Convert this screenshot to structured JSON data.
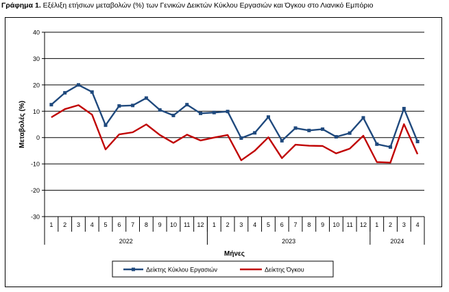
{
  "figure_title": {
    "label": "Γράφημα 1.",
    "text": " Εξέλιξη ετήσιων μεταβολών (%) των Γενικών Δεικτών Κύκλου Εργασιών και Όγκου στο Λιανικό Εμπόριο"
  },
  "colors": {
    "turnover": "#1f497d",
    "volume": "#c00000",
    "grid": "#000000"
  },
  "chart_data": {
    "type": "line",
    "title": "",
    "xlabel": "Μήνες",
    "ylabel": "Μεταβολές  (%)",
    "ylim": [
      -30,
      40
    ],
    "yticks": [
      -30,
      -20,
      -10,
      0,
      10,
      20,
      30,
      40
    ],
    "grid": true,
    "legend_position": "bottom",
    "x": [
      "1",
      "2",
      "3",
      "4",
      "5",
      "6",
      "7",
      "8",
      "9",
      "10",
      "11",
      "12",
      "1",
      "2",
      "3",
      "4",
      "5",
      "6",
      "7",
      "8",
      "9",
      "10",
      "11",
      "12",
      "1",
      "2",
      "3",
      "4"
    ],
    "year_groups": [
      {
        "label": "2022",
        "count": 12
      },
      {
        "label": "2023",
        "count": 12
      },
      {
        "label": "2024",
        "count": 4
      }
    ],
    "series": [
      {
        "name": "Δείκτης Κύκλου Εργασιών",
        "marker": "square",
        "values": [
          12.5,
          17.0,
          20.0,
          17.3,
          4.7,
          12.0,
          12.2,
          15.0,
          10.5,
          8.4,
          12.5,
          9.2,
          9.5,
          9.9,
          -0.2,
          1.8,
          7.8,
          -1.2,
          3.6,
          2.7,
          3.2,
          0.3,
          1.7,
          7.5,
          -2.5,
          -3.6,
          11.0,
          -1.5
        ]
      },
      {
        "name": "Δείκτης Όγκου",
        "marker": "none",
        "values": [
          7.7,
          10.8,
          12.3,
          8.7,
          -4.5,
          1.2,
          2.0,
          5.0,
          1.0,
          -2.0,
          1.1,
          -1.1,
          0.0,
          1.0,
          -8.6,
          -5.0,
          0.1,
          -7.8,
          -2.7,
          -3.1,
          -3.2,
          -6.0,
          -4.2,
          0.7,
          -9.3,
          -9.5,
          5.1,
          -6.3
        ]
      }
    ]
  }
}
